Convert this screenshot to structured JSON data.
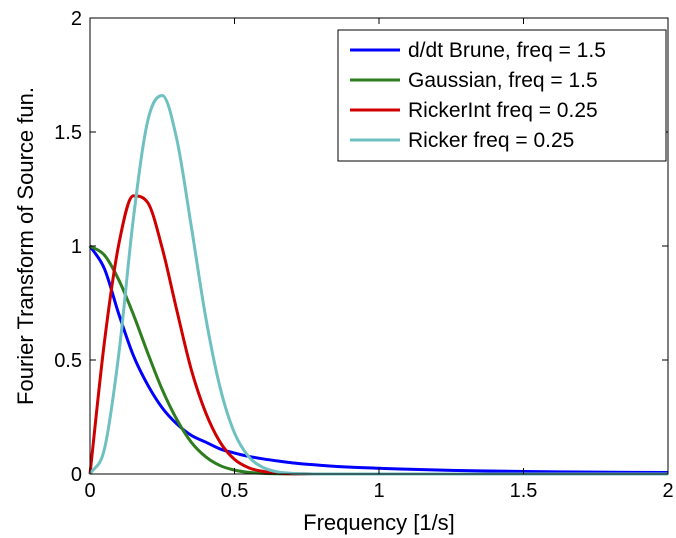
{
  "chart_data": {
    "type": "line",
    "title": "",
    "xlabel": "Frequency [1/s]",
    "ylabel": "Fourier Transform of Source fun.",
    "xlim": [
      0,
      2
    ],
    "ylim": [
      0,
      2
    ],
    "x_ticks": [
      0,
      0.5,
      1,
      1.5,
      2
    ],
    "x_tick_labels": [
      "0",
      "0.5",
      "1",
      "1.5",
      "2"
    ],
    "y_ticks": [
      0,
      0.5,
      1,
      1.5,
      2
    ],
    "y_tick_labels": [
      "0",
      "0.5",
      "1",
      "1.5",
      "2"
    ],
    "grid": false,
    "legend_position": "top-right",
    "x": [
      0,
      0.05,
      0.1,
      0.15,
      0.2,
      0.25,
      0.3,
      0.35,
      0.4,
      0.45,
      0.5,
      0.55,
      0.6,
      0.65,
      0.7,
      0.75,
      0.8,
      0.9,
      1.0,
      1.25,
      1.5,
      1.75,
      2.0
    ],
    "series": [
      {
        "name": "d/dt Brune, freq = 1.5",
        "color": "#0000ff",
        "values": [
          1.0,
          0.9,
          0.7,
          0.52,
          0.39,
          0.29,
          0.22,
          0.17,
          0.14,
          0.11,
          0.092,
          0.077,
          0.066,
          0.057,
          0.049,
          0.043,
          0.038,
          0.03,
          0.025,
          0.016,
          0.011,
          0.0082,
          0.0063
        ]
      },
      {
        "name": "Gaussian, freq = 1.5",
        "color": "#2e7d1f",
        "values": [
          1.0,
          0.96,
          0.85,
          0.7,
          0.53,
          0.37,
          0.24,
          0.14,
          0.076,
          0.037,
          0.017,
          0.007,
          0.0026,
          0.0009,
          0.0003,
          0.0001,
          0,
          0,
          0,
          0,
          0,
          0,
          0
        ]
      },
      {
        "name": "RickerInt freq = 0.25",
        "color": "#d00000",
        "values": [
          0,
          0.58,
          1.01,
          1.22,
          1.19,
          0.99,
          0.72,
          0.46,
          0.27,
          0.14,
          0.064,
          0.027,
          0.011,
          0.004,
          0.0013,
          0.0004,
          0.0001,
          0,
          0,
          0,
          0,
          0,
          0
        ]
      },
      {
        "name": "Ricker freq = 0.25",
        "color": "#6fc1c1",
        "values": [
          0,
          0.11,
          0.53,
          1.12,
          1.55,
          1.66,
          1.47,
          1.09,
          0.69,
          0.38,
          0.18,
          0.075,
          0.028,
          0.009,
          0.003,
          0.0008,
          0.0002,
          0,
          0,
          0,
          0,
          0,
          0
        ]
      }
    ]
  }
}
